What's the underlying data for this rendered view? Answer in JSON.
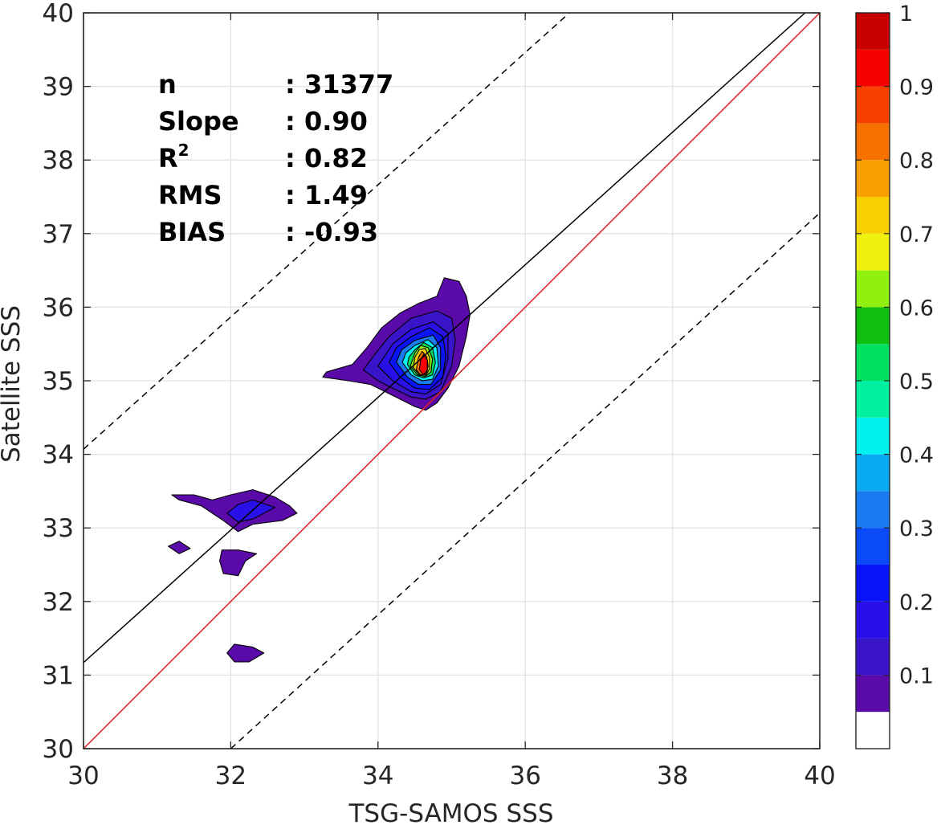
{
  "chart_data": {
    "type": "contour",
    "xlabel": "TSG-SAMOS SSS",
    "ylabel": "Satellite SSS",
    "xlim": [
      30,
      40
    ],
    "ylim": [
      30,
      40
    ],
    "xticks": [
      30,
      32,
      34,
      36,
      38,
      40
    ],
    "yticks": [
      30,
      31,
      32,
      33,
      34,
      35,
      36,
      37,
      38,
      39,
      40
    ],
    "grid": true,
    "stats": [
      {
        "label": "n",
        "value": ": 31377"
      },
      {
        "label": "Slope",
        "value": ": 0.90"
      },
      {
        "label": "R",
        "superscript": "2",
        "value": ": 0.82"
      },
      {
        "label": "RMS",
        "value": ": 1.49"
      },
      {
        "label": "BIAS",
        "value": ": -0.93"
      }
    ],
    "reference_lines": [
      {
        "kind": "one-to-one",
        "color": "#e02020",
        "style": "solid",
        "points": [
          [
            30,
            30
          ],
          [
            40,
            40
          ]
        ]
      },
      {
        "kind": "fit",
        "color": "#000000",
        "style": "solid",
        "points": [
          [
            30,
            31.17
          ],
          [
            39.8,
            40
          ]
        ]
      },
      {
        "kind": "upper-bound",
        "color": "#000000",
        "style": "dashed",
        "points": [
          [
            30,
            34.07
          ],
          [
            36.6,
            40
          ]
        ]
      },
      {
        "kind": "lower-bound",
        "color": "#000000",
        "style": "dashed",
        "points": [
          [
            32.0,
            30
          ],
          [
            40,
            37.28
          ]
        ]
      }
    ],
    "colorbar": {
      "range": [
        0,
        1
      ],
      "tick_values": [
        0.1,
        0.2,
        0.3,
        0.4,
        0.5,
        0.6,
        0.7,
        0.8,
        0.9,
        1
      ],
      "tick_labels": [
        "0.1",
        "0.2",
        "0.3",
        "0.4",
        "0.5",
        "0.6",
        "0.7",
        "0.8",
        "0.9",
        "1"
      ],
      "levels": [
        0,
        0.05,
        0.1,
        0.15,
        0.2,
        0.25,
        0.3,
        0.35,
        0.4,
        0.45,
        0.5,
        0.55,
        0.6,
        0.65,
        0.7,
        0.75,
        0.8,
        0.85,
        0.9,
        0.95,
        1
      ],
      "colors": [
        "#ffffff",
        "#5a0aa8",
        "#3a14c8",
        "#2a10e8",
        "#0a14f8",
        "#0a4af8",
        "#1a7af0",
        "#0aaaf0",
        "#00f0f0",
        "#00f0a0",
        "#00e060",
        "#10c010",
        "#90f010",
        "#f0f010",
        "#f8d000",
        "#f8a000",
        "#f87000",
        "#f84000",
        "#f80000",
        "#c80000",
        "#8a0000"
      ]
    },
    "contours": [
      {
        "name": "main-cluster",
        "center": [
          34.6,
          35.2
        ],
        "rings": [
          {
            "level": 0.05,
            "points": [
              [
                33.25,
                35.05
              ],
              [
                33.6,
                35.0
              ],
              [
                33.9,
                34.95
              ],
              [
                34.1,
                34.85
              ],
              [
                34.3,
                34.75
              ],
              [
                34.5,
                34.65
              ],
              [
                34.65,
                34.6
              ],
              [
                34.8,
                34.7
              ],
              [
                34.95,
                34.9
              ],
              [
                35.1,
                35.2
              ],
              [
                35.2,
                35.6
              ],
              [
                35.25,
                35.9
              ],
              [
                35.2,
                36.15
              ],
              [
                35.1,
                36.35
              ],
              [
                34.9,
                36.4
              ],
              [
                34.8,
                36.15
              ],
              [
                34.55,
                36.05
              ],
              [
                34.3,
                35.92
              ],
              [
                34.05,
                35.72
              ],
              [
                33.85,
                35.45
              ],
              [
                33.65,
                35.22
              ],
              [
                33.3,
                35.12
              ]
            ]
          },
          {
            "level": 0.1,
            "points": [
              [
                33.8,
                35.15
              ],
              [
                34.0,
                35.0
              ],
              [
                34.2,
                34.9
              ],
              [
                34.45,
                34.78
              ],
              [
                34.65,
                34.75
              ],
              [
                34.85,
                34.85
              ],
              [
                35.0,
                35.2
              ],
              [
                35.05,
                35.55
              ],
              [
                35.0,
                35.85
              ],
              [
                34.8,
                35.95
              ],
              [
                34.45,
                35.85
              ],
              [
                34.15,
                35.6
              ],
              [
                33.95,
                35.35
              ]
            ]
          },
          {
            "level": 0.15,
            "points": [
              [
                34.0,
                35.2
              ],
              [
                34.2,
                35.0
              ],
              [
                34.45,
                34.85
              ],
              [
                34.65,
                34.82
              ],
              [
                34.85,
                34.95
              ],
              [
                34.95,
                35.3
              ],
              [
                34.95,
                35.65
              ],
              [
                34.75,
                35.8
              ],
              [
                34.45,
                35.7
              ],
              [
                34.2,
                35.5
              ]
            ]
          },
          {
            "level": 0.2,
            "points": [
              [
                34.15,
                35.25
              ],
              [
                34.3,
                35.05
              ],
              [
                34.5,
                34.9
              ],
              [
                34.7,
                34.88
              ],
              [
                34.88,
                35.05
              ],
              [
                34.92,
                35.35
              ],
              [
                34.88,
                35.6
              ],
              [
                34.7,
                35.72
              ],
              [
                34.45,
                35.6
              ],
              [
                34.25,
                35.45
              ]
            ]
          },
          {
            "level": 0.3,
            "points": [
              [
                34.25,
                35.25
              ],
              [
                34.4,
                35.05
              ],
              [
                34.55,
                34.95
              ],
              [
                34.72,
                34.95
              ],
              [
                34.85,
                35.15
              ],
              [
                34.85,
                35.45
              ],
              [
                34.75,
                35.62
              ],
              [
                34.5,
                35.55
              ],
              [
                34.32,
                35.42
              ]
            ]
          },
          {
            "level": 0.4,
            "points": [
              [
                34.33,
                35.25
              ],
              [
                34.45,
                35.08
              ],
              [
                34.6,
                35.0
              ],
              [
                34.74,
                35.02
              ],
              [
                34.82,
                35.2
              ],
              [
                34.8,
                35.45
              ],
              [
                34.68,
                35.56
              ],
              [
                34.5,
                35.48
              ],
              [
                34.38,
                35.38
              ]
            ]
          },
          {
            "level": 0.5,
            "points": [
              [
                34.4,
                35.22
              ],
              [
                34.5,
                35.08
              ],
              [
                34.62,
                35.04
              ],
              [
                34.74,
                35.08
              ],
              [
                34.78,
                35.25
              ],
              [
                34.74,
                35.45
              ],
              [
                34.62,
                35.52
              ],
              [
                34.5,
                35.42
              ],
              [
                34.42,
                35.32
              ]
            ]
          },
          {
            "level": 0.6,
            "points": [
              [
                34.44,
                35.2
              ],
              [
                34.54,
                35.08
              ],
              [
                34.64,
                35.06
              ],
              [
                34.72,
                35.12
              ],
              [
                34.74,
                35.3
              ],
              [
                34.68,
                35.45
              ],
              [
                34.58,
                35.48
              ],
              [
                34.5,
                35.38
              ]
            ]
          },
          {
            "level": 0.7,
            "points": [
              [
                34.48,
                35.18
              ],
              [
                34.56,
                35.08
              ],
              [
                34.65,
                35.08
              ],
              [
                34.7,
                35.16
              ],
              [
                34.7,
                35.32
              ],
              [
                34.64,
                35.44
              ],
              [
                34.56,
                35.42
              ],
              [
                34.5,
                35.32
              ]
            ]
          },
          {
            "level": 0.8,
            "points": [
              [
                34.52,
                35.15
              ],
              [
                34.58,
                35.08
              ],
              [
                34.66,
                35.1
              ],
              [
                34.68,
                35.2
              ],
              [
                34.66,
                35.33
              ],
              [
                34.6,
                35.4
              ],
              [
                34.55,
                35.32
              ]
            ]
          },
          {
            "level": 0.9,
            "points": [
              [
                34.56,
                35.15
              ],
              [
                34.62,
                35.08
              ],
              [
                34.67,
                35.15
              ],
              [
                34.67,
                35.28
              ],
              [
                34.62,
                35.36
              ],
              [
                34.58,
                35.28
              ]
            ]
          }
        ]
      },
      {
        "name": "upper-left-cluster",
        "center": [
          32.2,
          33.2
        ],
        "rings": [
          {
            "level": 0.05,
            "points": [
              [
                31.2,
                33.45
              ],
              [
                31.5,
                33.45
              ],
              [
                31.75,
                33.38
              ],
              [
                32.0,
                33.45
              ],
              [
                32.3,
                33.52
              ],
              [
                32.6,
                33.42
              ],
              [
                32.8,
                33.3
              ],
              [
                32.9,
                33.2
              ],
              [
                32.7,
                33.1
              ],
              [
                32.3,
                33.05
              ],
              [
                32.1,
                32.95
              ],
              [
                31.9,
                33.1
              ],
              [
                31.6,
                33.3
              ],
              [
                31.3,
                33.38
              ]
            ]
          },
          {
            "level": 0.15,
            "points": [
              [
                31.95,
                33.2
              ],
              [
                32.1,
                33.32
              ],
              [
                32.3,
                33.38
              ],
              [
                32.6,
                33.28
              ],
              [
                32.3,
                33.12
              ],
              [
                32.1,
                33.08
              ]
            ]
          }
        ]
      },
      {
        "name": "small-cluster-a",
        "center": [
          31.35,
          32.75
        ],
        "rings": [
          {
            "level": 0.05,
            "points": [
              [
                31.15,
                32.75
              ],
              [
                31.3,
                32.82
              ],
              [
                31.45,
                32.72
              ],
              [
                31.3,
                32.65
              ]
            ]
          }
        ]
      },
      {
        "name": "small-cluster-b",
        "center": [
          32.1,
          32.55
        ],
        "rings": [
          {
            "level": 0.05,
            "points": [
              [
                31.88,
                32.7
              ],
              [
                32.1,
                32.7
              ],
              [
                32.35,
                32.65
              ],
              [
                32.2,
                32.55
              ],
              [
                32.1,
                32.35
              ],
              [
                31.9,
                32.38
              ],
              [
                31.85,
                32.55
              ]
            ]
          }
        ]
      },
      {
        "name": "bottom-cluster",
        "center": [
          32.15,
          31.3
        ],
        "rings": [
          {
            "level": 0.05,
            "points": [
              [
                31.95,
                31.3
              ],
              [
                32.05,
                31.42
              ],
              [
                32.3,
                31.38
              ],
              [
                32.45,
                31.3
              ],
              [
                32.25,
                31.18
              ],
              [
                32.05,
                31.18
              ]
            ]
          }
        ]
      }
    ]
  }
}
